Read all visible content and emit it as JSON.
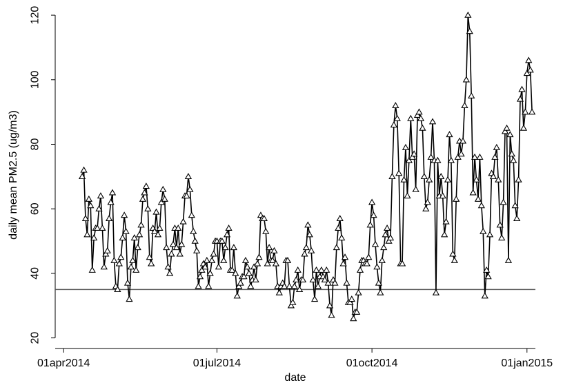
{
  "chart_data": {
    "type": "line",
    "title": "",
    "xlabel": "date",
    "ylabel": "daily mean PM2.5 (ug/m3)",
    "xlim": [
      "2014-03-27",
      "2015-01-06"
    ],
    "ylim": [
      18,
      123
    ],
    "x_ticks": [
      {
        "date": "2014-04-01",
        "label": "01apr2014"
      },
      {
        "date": "2014-07-01",
        "label": "01jul2014"
      },
      {
        "date": "2014-10-01",
        "label": "01oct2014"
      },
      {
        "date": "2015-01-01",
        "label": "01jan2015"
      }
    ],
    "y_ticks": [
      20,
      40,
      60,
      80,
      100,
      120
    ],
    "reference_line": {
      "y": 35,
      "color": "#555555"
    },
    "grid": false,
    "line_color": "#000000",
    "marker": "hollow-triangle",
    "series": [
      {
        "start_date": "2014-04-12",
        "interval_days": 1,
        "values": [
          70,
          72,
          57,
          52,
          63,
          61,
          41,
          51,
          54,
          54,
          60,
          64,
          54,
          42,
          46,
          47,
          57,
          62,
          65,
          44,
          36,
          35,
          43,
          45,
          51,
          58,
          53,
          37,
          32,
          42,
          44,
          51,
          41,
          48,
          52,
          55,
          63,
          65,
          67,
          60,
          45,
          43,
          54,
          53,
          59,
          52,
          54,
          62,
          66,
          63,
          48,
          42,
          40,
          46,
          49,
          54,
          48,
          54,
          46,
          49,
          56,
          64,
          64,
          70,
          66,
          58,
          53,
          50,
          47,
          36,
          39,
          41,
          43,
          42,
          44,
          36,
          40,
          44,
          46,
          50,
          50,
          42,
          50,
          50,
          44,
          48,
          52,
          54,
          41,
          41,
          48,
          40,
          33,
          36,
          37,
          39,
          39,
          44,
          42,
          40,
          36,
          38,
          42,
          38,
          43,
          45,
          58,
          57,
          57,
          53,
          43,
          48,
          44,
          44,
          47,
          43,
          36,
          34,
          36,
          37,
          36,
          44,
          44,
          36,
          30,
          31,
          36,
          38,
          41,
          35,
          38,
          38,
          46,
          48,
          55,
          52,
          47,
          38,
          32,
          41,
          36,
          39,
          41,
          39,
          38,
          41,
          37,
          30,
          27,
          38,
          37,
          48,
          54,
          57,
          51,
          43,
          45,
          37,
          31,
          31,
          32,
          26,
          28,
          28,
          34,
          41,
          44,
          44,
          43,
          43,
          45,
          55,
          62,
          58,
          49,
          42,
          37,
          34,
          44,
          48,
          52,
          54,
          50,
          51,
          70,
          86,
          92,
          88,
          71,
          43,
          43,
          69,
          79,
          64,
          75,
          88,
          76,
          77,
          66,
          89,
          90,
          88,
          85,
          70,
          60,
          62,
          69,
          76,
          87,
          75,
          34,
          75,
          64,
          70,
          64,
          52,
          56,
          69,
          83,
          75,
          46,
          44,
          63,
          76,
          81,
          77,
          81,
          92,
          100,
          120,
          115,
          95,
          65,
          76,
          69,
          63,
          76,
          61,
          53,
          33,
          41,
          39,
          52,
          71,
          70,
          76,
          79,
          69,
          55,
          51,
          62,
          84,
          85,
          44,
          83,
          77,
          75,
          61,
          57,
          69,
          94,
          97,
          85,
          90,
          102,
          106,
          103,
          90
        ]
      }
    ]
  }
}
